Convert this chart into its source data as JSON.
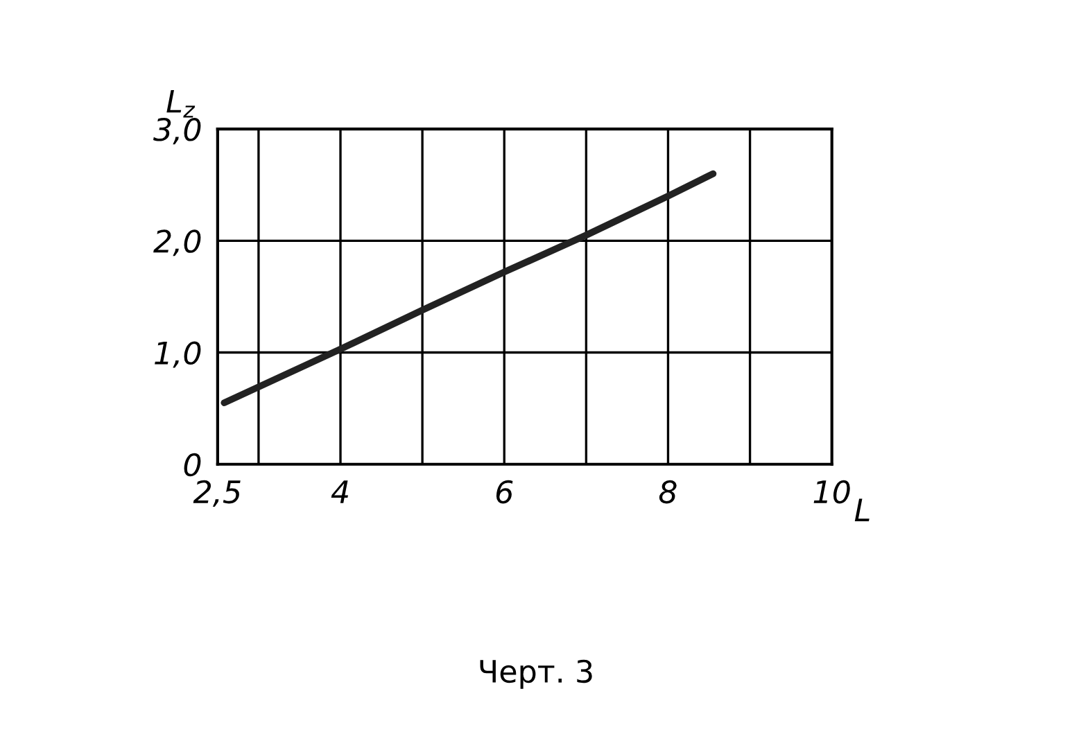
{
  "chart_data": {
    "type": "line",
    "xlabel": "L",
    "ylabel": "L$_{z}$",
    "annotations": [
      "Черт. 3"
    ],
    "x": [
      2.58,
      4,
      5,
      6,
      7,
      8,
      8.55
    ],
    "series": [
      {
        "color": "#222222",
        "values": [
          0.55,
          1.03,
          1.38,
          1.72,
          2.05,
          2.4,
          2.6
        ]
      }
    ],
    "xlim": [
      2.5,
      10
    ],
    "xticks": [
      {
        "value": 2.5,
        "label": "2,5"
      },
      {
        "value": 3,
        "label": null
      },
      {
        "value": 4,
        "label": "4"
      },
      {
        "value": 5,
        "label": null
      },
      {
        "value": 6,
        "label": "6"
      },
      {
        "value": 7,
        "label": null
      },
      {
        "value": 8,
        "label": "8"
      },
      {
        "value": 9,
        "label": null
      },
      {
        "value": 10,
        "label": "10"
      }
    ],
    "ylim": [
      0,
      3
    ],
    "yticks": [
      0,
      {
        "value": 1,
        "label": "1,0"
      },
      {
        "value": 2,
        "label": "2,0"
      },
      {
        "value": 3,
        "label": "3,0"
      }
    ],
    "grid": true
  }
}
